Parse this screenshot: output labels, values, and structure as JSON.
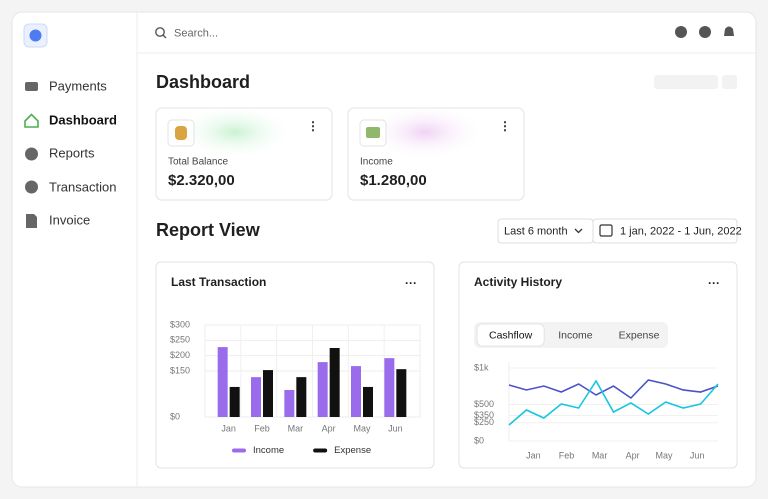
{
  "sidebar": {
    "items": [
      "Payments",
      "Dashboard",
      "Reports",
      "Transaction",
      "Invoice"
    ]
  },
  "header": {
    "search_placeholder": "Search..."
  },
  "page_title": "Dashboard",
  "cards": [
    {
      "label": "Total Balance",
      "value": "$2.320,00"
    },
    {
      "label": "Income",
      "value": "$1.280,00"
    }
  ],
  "report": {
    "title": "Report View",
    "period": "Last 6 month",
    "date_range": "1 jan, 2022 - 1 Jun, 2022"
  },
  "charts": [
    {
      "type": "bar",
      "title": "Last Transaction",
      "categories": [
        "Jan",
        "Feb",
        "Mar",
        "Apr",
        "May",
        "Jun"
      ],
      "series": [
        {
          "name": "Income",
          "color": "#9a6cec",
          "values": [
            228,
            130,
            88,
            179,
            166,
            192
          ]
        },
        {
          "name": "Expense",
          "color": "#111111",
          "values": [
            98,
            153,
            130,
            225,
            98,
            156
          ]
        }
      ],
      "ylim": [
        0,
        300
      ],
      "yticks": [
        {
          "value": 300,
          "label": "$300"
        },
        {
          "value": 250,
          "label": "$250"
        },
        {
          "value": 200,
          "label": "$200"
        },
        {
          "value": 150,
          "label": "$150"
        },
        {
          "value": 0,
          "label": "$0"
        }
      ],
      "grid": true,
      "legend": "bottom"
    },
    {
      "type": "line",
      "title": "Activity History",
      "tabs": [
        "Cashflow",
        "Income",
        "Expense"
      ],
      "active_tab": 0,
      "x": [
        0,
        1,
        2,
        3,
        4,
        5,
        6,
        7,
        8,
        9,
        10,
        11,
        12
      ],
      "xlim": [
        0,
        12
      ],
      "xticks": [
        {
          "value": 1.4,
          "label": "Jan"
        },
        {
          "value": 3.3,
          "label": "Feb"
        },
        {
          "value": 5.2,
          "label": "Mar"
        },
        {
          "value": 7.1,
          "label": "Apr"
        },
        {
          "value": 8.9,
          "label": "May"
        },
        {
          "value": 10.8,
          "label": "Jun"
        }
      ],
      "series": [
        {
          "color": "#4b52c8",
          "values": [
            767,
            699,
            753,
            671,
            781,
            630,
            753,
            589,
            836,
            781,
            699,
            671,
            753
          ]
        },
        {
          "color": "#17c6e0",
          "values": [
            219,
            425,
            315,
            507,
            452,
            822,
            397,
            521,
            370,
            534,
            452,
            507,
            781
          ]
        }
      ],
      "ylim": [
        0,
        1000
      ],
      "yticks": [
        {
          "value": 1000,
          "label": "$1k"
        },
        {
          "value": 500,
          "label": "$500"
        },
        {
          "value": 350,
          "label": "$350"
        },
        {
          "value": 250,
          "label": "$250"
        },
        {
          "value": 0,
          "label": "$0"
        }
      ],
      "grid": true
    }
  ]
}
